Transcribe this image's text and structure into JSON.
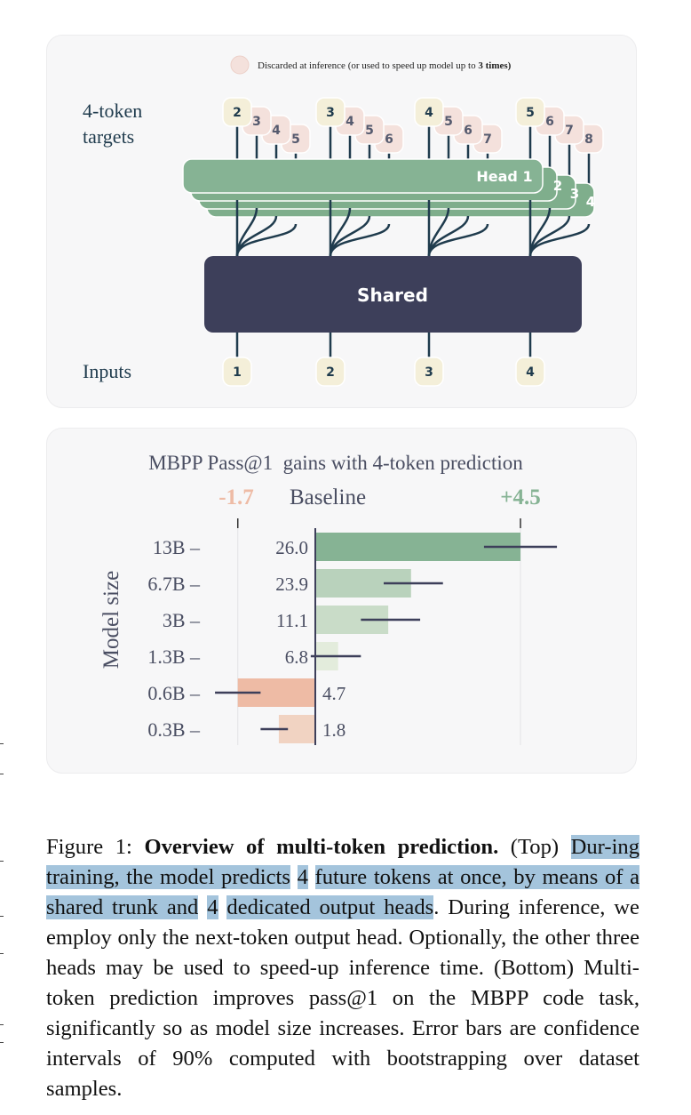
{
  "figure_top": {
    "legend_text_a": "Discarded at inference (or used to speed up model up to ",
    "legend_text_b": "3 times)",
    "targets_label_1": "4-token",
    "targets_label_2": "targets",
    "inputs_label": "Inputs",
    "shared_label": "Shared",
    "head_labels": [
      "Head 1",
      "2",
      "3",
      "4"
    ],
    "inputs": [
      "1",
      "2",
      "3",
      "4"
    ],
    "targets": [
      [
        "2",
        "3",
        "4",
        "5"
      ],
      [
        "3",
        "4",
        "5",
        "6"
      ],
      [
        "4",
        "5",
        "6",
        "7"
      ],
      [
        "5",
        "6",
        "7",
        "8"
      ]
    ],
    "colors": {
      "head": "#86b394",
      "shared": "#3d3f5a",
      "token": "#f4efd9",
      "discarded": "#f4e1dc",
      "line": "#1f3b4d"
    }
  },
  "chart_data": {
    "type": "bar",
    "orientation": "horizontal",
    "title": "MBPP Pass@1  gains with 4-token prediction",
    "baseline_label": "Baseline",
    "min_label": "-1.7",
    "max_label": "+4.5",
    "ylabel": "Model size",
    "categories": [
      "13B",
      "6.7B",
      "3B",
      "1.3B",
      "0.6B",
      "0.3B"
    ],
    "baseline_values": [
      "26.0",
      "23.9",
      "11.1",
      "6.8",
      "4.7",
      "1.8"
    ],
    "values": [
      4.5,
      2.1,
      1.6,
      0.5,
      -1.7,
      -0.8
    ],
    "errors": [
      [
        3.7,
        5.3
      ],
      [
        1.5,
        2.8
      ],
      [
        1.0,
        2.3
      ],
      [
        -0.1,
        1.0
      ],
      [
        -2.2,
        -1.2
      ],
      [
        -1.2,
        -0.6
      ]
    ],
    "xlim": [
      -1.7,
      4.5
    ],
    "colors": [
      "#86b394",
      "#b9d2bc",
      "#c9dcc8",
      "#e3ecdc",
      "#eebba5",
      "#f1d3c2"
    ]
  },
  "caption": {
    "figure_label": "Figure 1: ",
    "bold_title": "Overview of multi-token prediction.",
    "seg1": " (Top) ",
    "hl1": "Dur-ing training, the model predicts",
    "seg2": " ",
    "hl2": "4",
    "seg3": " ",
    "hl3": "future tokens at once, by means of a shared trunk and",
    "seg4": " ",
    "hl4": "4",
    "seg5": " ",
    "hl5": "dedicated output heads",
    "seg6": ". During inference, we employ only the next-token output head. Optionally, the other three heads may be used to speed-up inference time. (Bottom) Multi-token prediction improves pass@1 on the MBPP code task, significantly so as model size increases. Error bars are confidence intervals of 90% computed with bootstrapping over dataset samples."
  }
}
